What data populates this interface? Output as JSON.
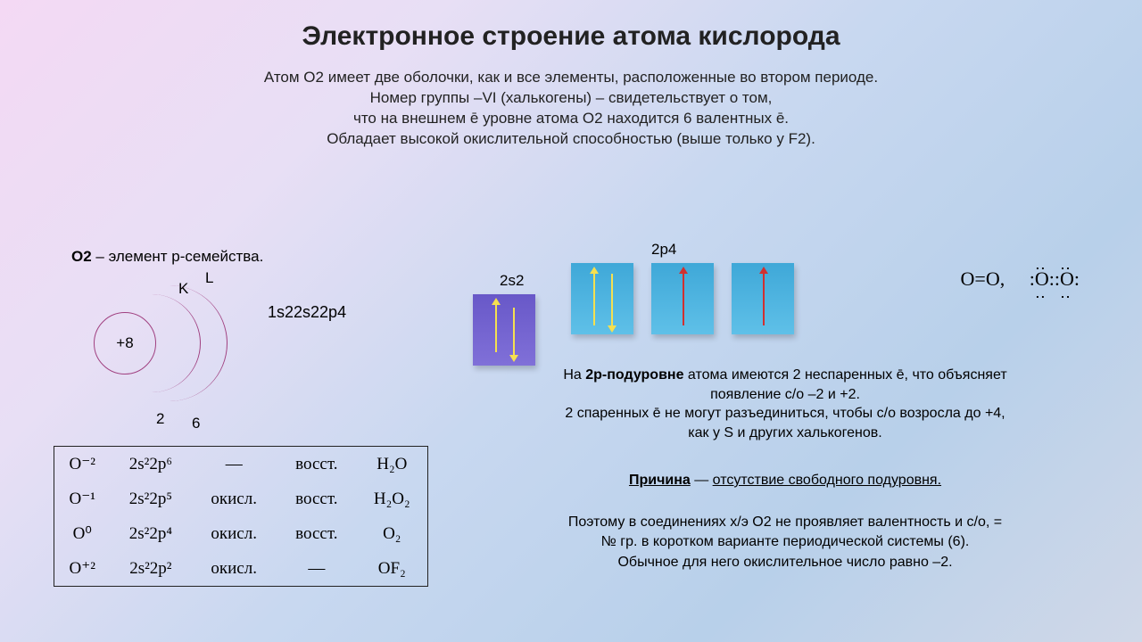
{
  "title": "Электронное строение атома кислорода",
  "intro_line1": "Атом О2 имеет две оболочки, как и все элементы, расположенные во втором периоде.",
  "intro_line2": "Номер группы –VI (халькогены) – свидетельствует о том,",
  "intro_line3": "что на внешнем ē уровне атома О2 находится 6 валентных ē.",
  "intro_line4": "Обладает высокой окислительной способностью (выше только у F2).",
  "family_prefix": "О2",
  "family_text": " – элемент р-семейства.",
  "shell": {
    "K": "K",
    "L": "L",
    "core": "+8",
    "n1": "2",
    "n2": "6"
  },
  "config": "1s22s22p4",
  "orbitals": {
    "label_2p4": "2p4",
    "label_2s2": "2s2",
    "colors": {
      "s_box": "#6858c8",
      "p_box": "#3fa8d8",
      "arrow_yellow": "#f5e050",
      "arrow_red": "#d03030"
    }
  },
  "lewis": {
    "eq": "O=O,",
    "struct1": ":O::O:"
  },
  "explain": {
    "l1a": "На ",
    "l1b": "2р-подуровне",
    "l1c": " атома имеются 2 неспаренных ē, что объясняет",
    "l2": "появление с/о –2 и +2.",
    "l3": "2 спаренных ē не могут разъединиться, чтобы с/о возросла до +4,",
    "l4": "как у S и других халькогенов."
  },
  "reason": {
    "label": "Причина",
    "dash": " — ",
    "text": "отсутствие свободного подуровня."
  },
  "final": {
    "l1": "Поэтому в соединениях х/э О2 не проявляет валентность и с/о, =",
    "l2": "№ гр. в коротком варианте периодической системы (6).",
    "l3": "Обычное для него окислительное число равно –2."
  },
  "table": {
    "rows": [
      {
        "state": "O⁻²",
        "config": "2s²2p⁶",
        "ox": "—",
        "red": "восст.",
        "ex": "H₂O"
      },
      {
        "state": "O⁻¹",
        "config": "2s²2p⁵",
        "ox": "окисл.",
        "red": "восст.",
        "ex": "H₂O₂"
      },
      {
        "state": "O⁰",
        "config": "2s²2p⁴",
        "ox": "окисл.",
        "red": "восст.",
        "ex": "O₂"
      },
      {
        "state": "O⁺²",
        "config": "2s²2p²",
        "ox": "окисл.",
        "red": "—",
        "ex": "OF₂"
      }
    ]
  }
}
